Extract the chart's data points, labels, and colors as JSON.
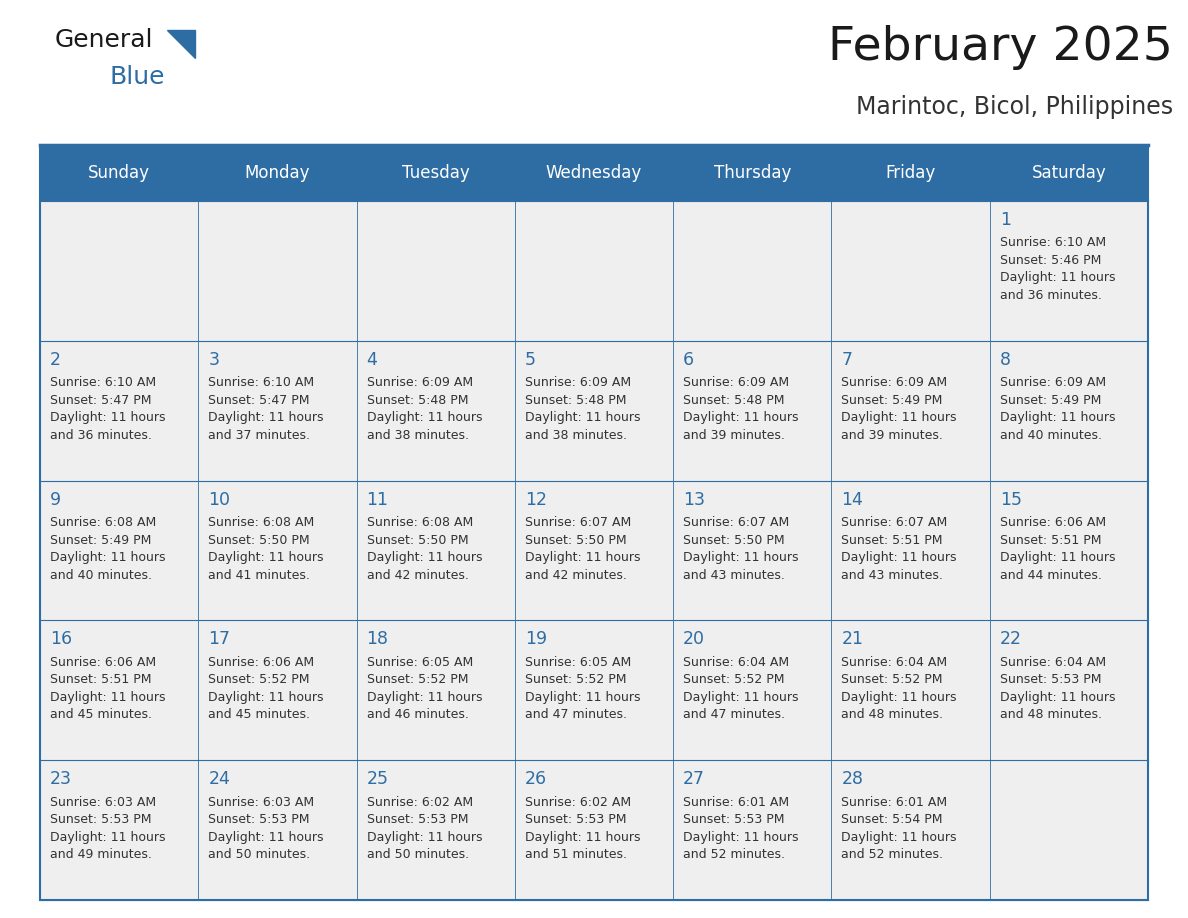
{
  "title": "February 2025",
  "subtitle": "Marintoc, Bicol, Philippines",
  "days_of_week": [
    "Sunday",
    "Monday",
    "Tuesday",
    "Wednesday",
    "Thursday",
    "Friday",
    "Saturday"
  ],
  "header_bg": "#2E6DA4",
  "header_text": "#FFFFFF",
  "cell_bg": "#EFEFEF",
  "border_color": "#2E6DA4",
  "day_number_color": "#2E6DA4",
  "text_color": "#333333",
  "title_color": "#1a1a1a",
  "subtitle_color": "#333333",
  "calendar": [
    [
      null,
      null,
      null,
      null,
      null,
      null,
      {
        "day": 1,
        "sunrise": "6:10 AM",
        "sunset": "5:46 PM",
        "daylight": "11 hours",
        "daylight2": "and 36 minutes."
      }
    ],
    [
      {
        "day": 2,
        "sunrise": "6:10 AM",
        "sunset": "5:47 PM",
        "daylight": "11 hours",
        "daylight2": "and 36 minutes."
      },
      {
        "day": 3,
        "sunrise": "6:10 AM",
        "sunset": "5:47 PM",
        "daylight": "11 hours",
        "daylight2": "and 37 minutes."
      },
      {
        "day": 4,
        "sunrise": "6:09 AM",
        "sunset": "5:48 PM",
        "daylight": "11 hours",
        "daylight2": "and 38 minutes."
      },
      {
        "day": 5,
        "sunrise": "6:09 AM",
        "sunset": "5:48 PM",
        "daylight": "11 hours",
        "daylight2": "and 38 minutes."
      },
      {
        "day": 6,
        "sunrise": "6:09 AM",
        "sunset": "5:48 PM",
        "daylight": "11 hours",
        "daylight2": "and 39 minutes."
      },
      {
        "day": 7,
        "sunrise": "6:09 AM",
        "sunset": "5:49 PM",
        "daylight": "11 hours",
        "daylight2": "and 39 minutes."
      },
      {
        "day": 8,
        "sunrise": "6:09 AM",
        "sunset": "5:49 PM",
        "daylight": "11 hours",
        "daylight2": "and 40 minutes."
      }
    ],
    [
      {
        "day": 9,
        "sunrise": "6:08 AM",
        "sunset": "5:49 PM",
        "daylight": "11 hours",
        "daylight2": "and 40 minutes."
      },
      {
        "day": 10,
        "sunrise": "6:08 AM",
        "sunset": "5:50 PM",
        "daylight": "11 hours",
        "daylight2": "and 41 minutes."
      },
      {
        "day": 11,
        "sunrise": "6:08 AM",
        "sunset": "5:50 PM",
        "daylight": "11 hours",
        "daylight2": "and 42 minutes."
      },
      {
        "day": 12,
        "sunrise": "6:07 AM",
        "sunset": "5:50 PM",
        "daylight": "11 hours",
        "daylight2": "and 42 minutes."
      },
      {
        "day": 13,
        "sunrise": "6:07 AM",
        "sunset": "5:50 PM",
        "daylight": "11 hours",
        "daylight2": "and 43 minutes."
      },
      {
        "day": 14,
        "sunrise": "6:07 AM",
        "sunset": "5:51 PM",
        "daylight": "11 hours",
        "daylight2": "and 43 minutes."
      },
      {
        "day": 15,
        "sunrise": "6:06 AM",
        "sunset": "5:51 PM",
        "daylight": "11 hours",
        "daylight2": "and 44 minutes."
      }
    ],
    [
      {
        "day": 16,
        "sunrise": "6:06 AM",
        "sunset": "5:51 PM",
        "daylight": "11 hours",
        "daylight2": "and 45 minutes."
      },
      {
        "day": 17,
        "sunrise": "6:06 AM",
        "sunset": "5:52 PM",
        "daylight": "11 hours",
        "daylight2": "and 45 minutes."
      },
      {
        "day": 18,
        "sunrise": "6:05 AM",
        "sunset": "5:52 PM",
        "daylight": "11 hours",
        "daylight2": "and 46 minutes."
      },
      {
        "day": 19,
        "sunrise": "6:05 AM",
        "sunset": "5:52 PM",
        "daylight": "11 hours",
        "daylight2": "and 47 minutes."
      },
      {
        "day": 20,
        "sunrise": "6:04 AM",
        "sunset": "5:52 PM",
        "daylight": "11 hours",
        "daylight2": "and 47 minutes."
      },
      {
        "day": 21,
        "sunrise": "6:04 AM",
        "sunset": "5:52 PM",
        "daylight": "11 hours",
        "daylight2": "and 48 minutes."
      },
      {
        "day": 22,
        "sunrise": "6:04 AM",
        "sunset": "5:53 PM",
        "daylight": "11 hours",
        "daylight2": "and 48 minutes."
      }
    ],
    [
      {
        "day": 23,
        "sunrise": "6:03 AM",
        "sunset": "5:53 PM",
        "daylight": "11 hours",
        "daylight2": "and 49 minutes."
      },
      {
        "day": 24,
        "sunrise": "6:03 AM",
        "sunset": "5:53 PM",
        "daylight": "11 hours",
        "daylight2": "and 50 minutes."
      },
      {
        "day": 25,
        "sunrise": "6:02 AM",
        "sunset": "5:53 PM",
        "daylight": "11 hours",
        "daylight2": "and 50 minutes."
      },
      {
        "day": 26,
        "sunrise": "6:02 AM",
        "sunset": "5:53 PM",
        "daylight": "11 hours",
        "daylight2": "and 51 minutes."
      },
      {
        "day": 27,
        "sunrise": "6:01 AM",
        "sunset": "5:53 PM",
        "daylight": "11 hours",
        "daylight2": "and 52 minutes."
      },
      {
        "day": 28,
        "sunrise": "6:01 AM",
        "sunset": "5:54 PM",
        "daylight": "11 hours",
        "daylight2": "and 52 minutes."
      },
      null
    ]
  ],
  "figsize": [
    11.88,
    9.18
  ],
  "dpi": 100
}
